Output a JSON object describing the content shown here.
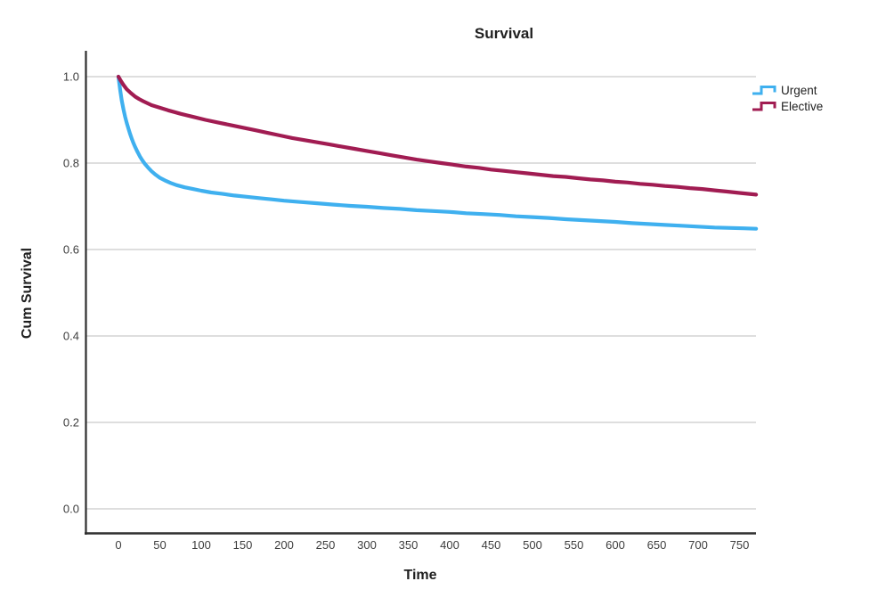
{
  "chart_data": {
    "type": "line",
    "title": "Survival",
    "xlabel": "Time",
    "ylabel": "Cum Survival",
    "legend_position": "right-top",
    "grid": "horizontal",
    "xlim": [
      -40,
      770
    ],
    "ylim": [
      0.0,
      1.0
    ],
    "x_ticks": [
      {
        "label": "0",
        "value": 0
      },
      {
        "label": "50",
        "value": 50
      },
      {
        "label": "100",
        "value": 100
      },
      {
        "label": "150",
        "value": 150
      },
      {
        "label": "200",
        "value": 200
      },
      {
        "label": "250",
        "value": 250
      },
      {
        "label": "300",
        "value": 300
      },
      {
        "label": "350",
        "value": 350
      },
      {
        "label": "400",
        "value": 400
      },
      {
        "label": "450",
        "value": 450
      },
      {
        "label": "500",
        "value": 500
      },
      {
        "label": "550",
        "value": 550
      },
      {
        "label": "600",
        "value": 600
      },
      {
        "label": "650",
        "value": 650
      },
      {
        "label": "700",
        "value": 700
      },
      {
        "label": "750",
        "value": 750
      }
    ],
    "y_ticks": [
      {
        "label": "1.0",
        "value": 1.0
      },
      {
        "label": "0.8",
        "value": 0.8
      },
      {
        "label": "0.6",
        "value": 0.6
      },
      {
        "label": "0.4",
        "value": 0.4
      },
      {
        "label": "0.2",
        "value": 0.2
      },
      {
        "label": "0.0",
        "value": 0.0
      }
    ],
    "series": [
      {
        "name": "Urgent",
        "color": "#3fb0ef",
        "x": [
          0,
          2,
          4,
          6,
          8,
          10,
          12,
          14,
          16,
          18,
          20,
          23,
          26,
          29,
          32,
          36,
          40,
          45,
          50,
          56,
          63,
          70,
          80,
          90,
          100,
          112,
          125,
          140,
          155,
          170,
          185,
          200,
          220,
          240,
          260,
          280,
          300,
          320,
          340,
          360,
          380,
          400,
          420,
          440,
          460,
          480,
          500,
          520,
          540,
          560,
          580,
          600,
          620,
          640,
          660,
          680,
          700,
          720,
          740,
          755,
          770
        ],
        "y": [
          1.0,
          0.97,
          0.945,
          0.925,
          0.908,
          0.893,
          0.88,
          0.868,
          0.857,
          0.847,
          0.838,
          0.826,
          0.815,
          0.806,
          0.798,
          0.789,
          0.781,
          0.773,
          0.766,
          0.76,
          0.754,
          0.749,
          0.744,
          0.74,
          0.736,
          0.732,
          0.729,
          0.725,
          0.722,
          0.719,
          0.716,
          0.713,
          0.71,
          0.707,
          0.704,
          0.701,
          0.699,
          0.696,
          0.694,
          0.691,
          0.689,
          0.687,
          0.684,
          0.682,
          0.68,
          0.677,
          0.675,
          0.673,
          0.67,
          0.668,
          0.666,
          0.664,
          0.661,
          0.659,
          0.657,
          0.655,
          0.653,
          0.651,
          0.65,
          0.649,
          0.648
        ]
      },
      {
        "name": "Elective",
        "color": "#a11c52",
        "x": [
          0,
          3,
          6,
          10,
          15,
          20,
          25,
          30,
          40,
          50,
          60,
          75,
          90,
          105,
          120,
          135,
          150,
          165,
          180,
          195,
          210,
          225,
          240,
          255,
          270,
          285,
          300,
          315,
          330,
          345,
          360,
          375,
          390,
          405,
          420,
          435,
          450,
          465,
          480,
          495,
          510,
          525,
          540,
          555,
          570,
          585,
          600,
          615,
          630,
          645,
          660,
          675,
          690,
          705,
          720,
          735,
          750,
          770
        ],
        "y": [
          1.0,
          0.99,
          0.981,
          0.971,
          0.962,
          0.954,
          0.948,
          0.943,
          0.934,
          0.928,
          0.922,
          0.914,
          0.907,
          0.9,
          0.894,
          0.888,
          0.882,
          0.876,
          0.87,
          0.864,
          0.858,
          0.853,
          0.848,
          0.843,
          0.838,
          0.833,
          0.828,
          0.823,
          0.818,
          0.813,
          0.808,
          0.804,
          0.8,
          0.796,
          0.792,
          0.789,
          0.785,
          0.782,
          0.779,
          0.776,
          0.773,
          0.77,
          0.768,
          0.765,
          0.762,
          0.76,
          0.757,
          0.755,
          0.752,
          0.75,
          0.747,
          0.745,
          0.742,
          0.74,
          0.737,
          0.734,
          0.731,
          0.727
        ]
      }
    ],
    "colors": {
      "grid": "#c9c9c9",
      "axis": "#2e2e2e",
      "title_text": "#1f1f1f",
      "tick_text": "#3d3d3d"
    }
  }
}
